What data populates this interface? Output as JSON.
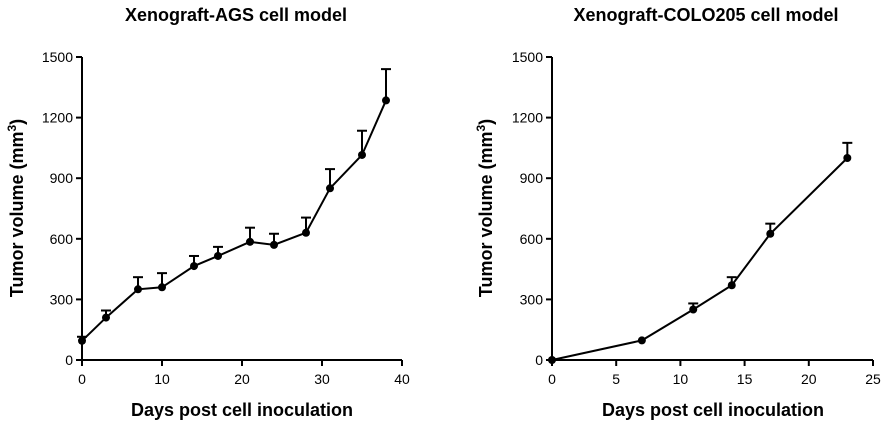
{
  "chart_data": [
    {
      "type": "line",
      "title": "Xenograft-AGS cell model",
      "xlabel": "Days post cell inoculation",
      "ylabel": "Tumor volume (mm",
      "ylabel_sup": "3",
      "ylabel_close": ")",
      "xlim": [
        0,
        40
      ],
      "ylim": [
        0,
        1500
      ],
      "xticks": [
        0,
        10,
        20,
        30,
        40
      ],
      "yticks": [
        0,
        300,
        600,
        900,
        1200,
        1500
      ],
      "xtick_labels": [
        "0",
        "10",
        "20",
        "30",
        "40"
      ],
      "ytick_labels": [
        "0",
        "300",
        "600",
        "900",
        "1200",
        "1500"
      ],
      "grid": false,
      "series": [
        {
          "name": "AGS",
          "x": [
            0,
            3,
            7,
            10,
            14,
            17,
            21,
            24,
            28,
            31,
            35,
            38
          ],
          "values": [
            95,
            210,
            350,
            360,
            465,
            515,
            585,
            570,
            630,
            850,
            1015,
            1285
          ],
          "error": [
            20,
            35,
            60,
            70,
            50,
            45,
            70,
            55,
            75,
            95,
            120,
            155
          ]
        }
      ]
    },
    {
      "type": "line",
      "title": "Xenograft-COLO205 cell model",
      "xlabel": "Days post cell inoculation",
      "ylabel": "Tumor volume (mm",
      "ylabel_sup": "3",
      "ylabel_close": ")",
      "xlim": [
        0,
        25
      ],
      "ylim": [
        0,
        1500
      ],
      "xticks": [
        0,
        5,
        10,
        15,
        20,
        25
      ],
      "yticks": [
        0,
        300,
        600,
        900,
        1200,
        1500
      ],
      "xtick_labels": [
        "0",
        "5",
        "10",
        "15",
        "20",
        "25"
      ],
      "ytick_labels": [
        "0",
        "300",
        "600",
        "900",
        "1200",
        "1500"
      ],
      "grid": false,
      "series": [
        {
          "name": "COLO205",
          "x": [
            0,
            7,
            11,
            14,
            17,
            23
          ],
          "values": [
            0,
            97,
            250,
            370,
            625,
            1000
          ],
          "error": [
            0,
            0,
            30,
            40,
            50,
            75
          ]
        }
      ]
    }
  ]
}
